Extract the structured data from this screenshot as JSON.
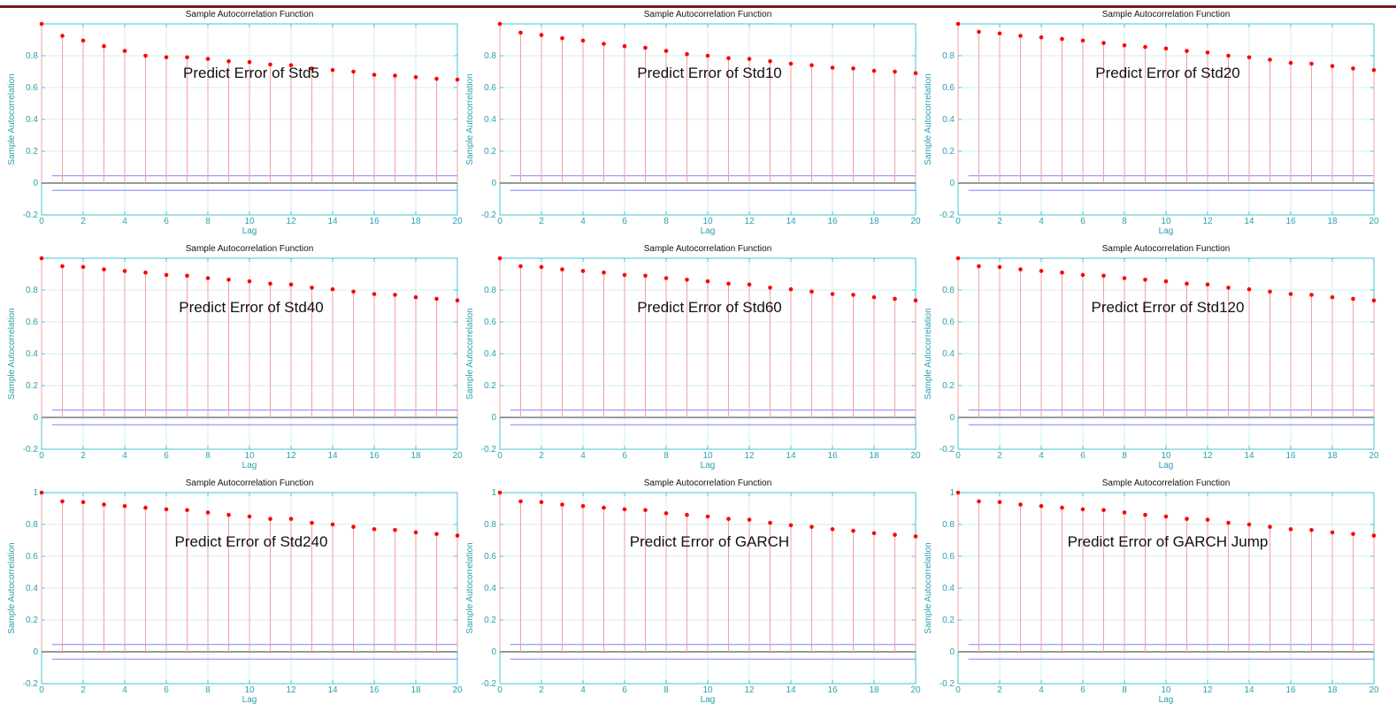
{
  "colors": {
    "axis": "#40c4cc",
    "grid": "#cfeff1",
    "stem": "#f2a0a0",
    "marker": "#ff0000",
    "bound": "#8080ff",
    "zero_line": "#333333",
    "tick_text": "#2aa0ad",
    "header_rule": "#7a1a1a"
  },
  "chart_data": [
    {
      "type": "scatter",
      "title": "Sample Autocorrelation Function",
      "xlabel": "Lag",
      "ylabel": "Sample Autocorrelation",
      "annotation": "Predict Error of Std5",
      "x": [
        0,
        1,
        2,
        3,
        4,
        5,
        6,
        7,
        8,
        9,
        10,
        11,
        12,
        13,
        14,
        15,
        16,
        17,
        18,
        19,
        20
      ],
      "values": [
        1.0,
        0.925,
        0.895,
        0.86,
        0.83,
        0.8,
        0.79,
        0.79,
        0.78,
        0.765,
        0.76,
        0.745,
        0.74,
        0.72,
        0.71,
        0.7,
        0.68,
        0.675,
        0.665,
        0.655,
        0.65
      ],
      "bounds": [
        0.046,
        -0.046
      ],
      "xlim": [
        0,
        20
      ],
      "ylim": [
        -0.2,
        1
      ],
      "x_ticks": [
        "0",
        "2",
        "4",
        "6",
        "8",
        "10",
        "12",
        "14",
        "16",
        "18",
        "20"
      ],
      "y_ticks": [
        "-0.2",
        "0",
        "0.2",
        "0.4",
        "0.6",
        "0.8"
      ],
      "grid": true
    },
    {
      "type": "scatter",
      "title": "Sample Autocorrelation Function",
      "xlabel": "Lag",
      "ylabel": "Sample Autocorrelation",
      "annotation": "Predict Error of Std10",
      "x": [
        0,
        1,
        2,
        3,
        4,
        5,
        6,
        7,
        8,
        9,
        10,
        11,
        12,
        13,
        14,
        15,
        16,
        17,
        18,
        19,
        20
      ],
      "values": [
        1.0,
        0.945,
        0.93,
        0.91,
        0.895,
        0.875,
        0.86,
        0.85,
        0.83,
        0.81,
        0.8,
        0.785,
        0.78,
        0.765,
        0.75,
        0.74,
        0.725,
        0.72,
        0.705,
        0.7,
        0.69
      ],
      "bounds": [
        0.046,
        -0.046
      ],
      "xlim": [
        0,
        20
      ],
      "ylim": [
        -0.2,
        1
      ],
      "x_ticks": [
        "0",
        "2",
        "4",
        "6",
        "8",
        "10",
        "12",
        "14",
        "16",
        "18",
        "20"
      ],
      "y_ticks": [
        "-0.2",
        "0",
        "0.2",
        "0.4",
        "0.6",
        "0.8"
      ],
      "grid": true
    },
    {
      "type": "scatter",
      "title": "Sample Autocorrelation Function",
      "xlabel": "Lag",
      "ylabel": "Sample Autocorrelation",
      "annotation": "Predict Error of Std20",
      "x": [
        0,
        1,
        2,
        3,
        4,
        5,
        6,
        7,
        8,
        9,
        10,
        11,
        12,
        13,
        14,
        15,
        16,
        17,
        18,
        19,
        20
      ],
      "values": [
        1.0,
        0.95,
        0.94,
        0.925,
        0.915,
        0.905,
        0.895,
        0.88,
        0.865,
        0.855,
        0.845,
        0.83,
        0.82,
        0.8,
        0.79,
        0.775,
        0.755,
        0.75,
        0.735,
        0.72,
        0.71
      ],
      "bounds": [
        0.046,
        -0.046
      ],
      "xlim": [
        0,
        20
      ],
      "ylim": [
        -0.2,
        1
      ],
      "x_ticks": [
        "0",
        "2",
        "4",
        "6",
        "8",
        "10",
        "12",
        "14",
        "16",
        "18",
        "20"
      ],
      "y_ticks": [
        "-0.2",
        "0",
        "0.2",
        "0.4",
        "0.6",
        "0.8"
      ],
      "grid": true
    },
    {
      "type": "scatter",
      "title": "Sample Autocorrelation Function",
      "xlabel": "Lag",
      "ylabel": "Sample Autocorrelation",
      "annotation": "Predict Error of Std40",
      "x": [
        0,
        1,
        2,
        3,
        4,
        5,
        6,
        7,
        8,
        9,
        10,
        11,
        12,
        13,
        14,
        15,
        16,
        17,
        18,
        19,
        20
      ],
      "values": [
        1.0,
        0.95,
        0.945,
        0.93,
        0.92,
        0.91,
        0.895,
        0.89,
        0.875,
        0.865,
        0.855,
        0.84,
        0.835,
        0.815,
        0.805,
        0.79,
        0.775,
        0.77,
        0.755,
        0.745,
        0.735
      ],
      "bounds": [
        0.046,
        -0.046
      ],
      "xlim": [
        0,
        20
      ],
      "ylim": [
        -0.2,
        1
      ],
      "x_ticks": [
        "0",
        "2",
        "4",
        "6",
        "8",
        "10",
        "12",
        "14",
        "16",
        "18",
        "20"
      ],
      "y_ticks": [
        "-0.2",
        "0",
        "0.2",
        "0.4",
        "0.6",
        "0.8"
      ],
      "grid": true
    },
    {
      "type": "scatter",
      "title": "Sample Autocorrelation Function",
      "xlabel": "Lag",
      "ylabel": "Sample Autocorrelation",
      "annotation": "Predict Error of Std60",
      "x": [
        0,
        1,
        2,
        3,
        4,
        5,
        6,
        7,
        8,
        9,
        10,
        11,
        12,
        13,
        14,
        15,
        16,
        17,
        18,
        19,
        20
      ],
      "values": [
        1.0,
        0.95,
        0.945,
        0.93,
        0.92,
        0.91,
        0.895,
        0.89,
        0.875,
        0.865,
        0.855,
        0.84,
        0.835,
        0.815,
        0.805,
        0.79,
        0.775,
        0.77,
        0.755,
        0.745,
        0.735
      ],
      "bounds": [
        0.046,
        -0.046
      ],
      "xlim": [
        0,
        20
      ],
      "ylim": [
        -0.2,
        1
      ],
      "x_ticks": [
        "0",
        "2",
        "4",
        "6",
        "8",
        "10",
        "12",
        "14",
        "16",
        "18",
        "20"
      ],
      "y_ticks": [
        "-0.2",
        "0",
        "0.2",
        "0.4",
        "0.6",
        "0.8"
      ],
      "grid": true
    },
    {
      "type": "scatter",
      "title": "Sample Autocorrelation Function",
      "xlabel": "Lag",
      "ylabel": "Sample Autocorrelation",
      "annotation": "Predict Error of Std120",
      "x": [
        0,
        1,
        2,
        3,
        4,
        5,
        6,
        7,
        8,
        9,
        10,
        11,
        12,
        13,
        14,
        15,
        16,
        17,
        18,
        19,
        20
      ],
      "values": [
        1.0,
        0.95,
        0.945,
        0.93,
        0.92,
        0.91,
        0.895,
        0.89,
        0.875,
        0.865,
        0.855,
        0.84,
        0.835,
        0.815,
        0.805,
        0.79,
        0.775,
        0.77,
        0.755,
        0.745,
        0.735
      ],
      "bounds": [
        0.046,
        -0.046
      ],
      "xlim": [
        0,
        20
      ],
      "ylim": [
        -0.2,
        1
      ],
      "x_ticks": [
        "0",
        "2",
        "4",
        "6",
        "8",
        "10",
        "12",
        "14",
        "16",
        "18",
        "20"
      ],
      "y_ticks": [
        "-0.2",
        "0",
        "0.2",
        "0.4",
        "0.6",
        "0.8"
      ],
      "grid": true
    },
    {
      "type": "scatter",
      "title": "Sample Autocorrelation Function",
      "xlabel": "Lag",
      "ylabel": "Sample Autocorrelation",
      "annotation": "Predict Error of Std240",
      "x": [
        0,
        1,
        2,
        3,
        4,
        5,
        6,
        7,
        8,
        9,
        10,
        11,
        12,
        13,
        14,
        15,
        16,
        17,
        18,
        19,
        20
      ],
      "values": [
        1.0,
        0.945,
        0.94,
        0.925,
        0.915,
        0.905,
        0.895,
        0.89,
        0.875,
        0.86,
        0.85,
        0.835,
        0.835,
        0.81,
        0.8,
        0.785,
        0.77,
        0.765,
        0.75,
        0.74,
        0.73
      ],
      "bounds": [
        0.046,
        -0.046
      ],
      "xlim": [
        0,
        20
      ],
      "ylim": [
        -0.2,
        1
      ],
      "x_ticks": [
        "0",
        "2",
        "4",
        "6",
        "8",
        "10",
        "12",
        "14",
        "16",
        "18",
        "20"
      ],
      "y_ticks": [
        "-0.2",
        "0",
        "0.2",
        "0.4",
        "0.6",
        "0.8",
        "1"
      ],
      "grid": true
    },
    {
      "type": "scatter",
      "title": "Sample Autocorrelation Function",
      "xlabel": "Lag",
      "ylabel": "Sample Autocorrelation",
      "annotation": "Predict Error of GARCH",
      "x": [
        0,
        1,
        2,
        3,
        4,
        5,
        6,
        7,
        8,
        9,
        10,
        11,
        12,
        13,
        14,
        15,
        16,
        17,
        18,
        19,
        20
      ],
      "values": [
        1.0,
        0.945,
        0.94,
        0.925,
        0.915,
        0.905,
        0.895,
        0.89,
        0.87,
        0.86,
        0.85,
        0.835,
        0.83,
        0.81,
        0.795,
        0.785,
        0.77,
        0.76,
        0.745,
        0.735,
        0.725
      ],
      "bounds": [
        0.046,
        -0.046
      ],
      "xlim": [
        0,
        20
      ],
      "ylim": [
        -0.2,
        1
      ],
      "x_ticks": [
        "0",
        "2",
        "4",
        "6",
        "8",
        "10",
        "12",
        "14",
        "16",
        "18",
        "20"
      ],
      "y_ticks": [
        "-0.2",
        "0",
        "0.2",
        "0.4",
        "0.6",
        "0.8",
        "1"
      ],
      "grid": true
    },
    {
      "type": "scatter",
      "title": "Sample Autocorrelation Function",
      "xlabel": "Lag",
      "ylabel": "Sample Autocorrelation",
      "annotation": "Predict Error of GARCH Jump",
      "x": [
        0,
        1,
        2,
        3,
        4,
        5,
        6,
        7,
        8,
        9,
        10,
        11,
        12,
        13,
        14,
        15,
        16,
        17,
        18,
        19,
        20
      ],
      "values": [
        1.0,
        0.945,
        0.94,
        0.925,
        0.915,
        0.905,
        0.895,
        0.89,
        0.875,
        0.86,
        0.85,
        0.835,
        0.83,
        0.81,
        0.8,
        0.785,
        0.77,
        0.765,
        0.75,
        0.74,
        0.73
      ],
      "bounds": [
        0.046,
        -0.046
      ],
      "xlim": [
        0,
        20
      ],
      "ylim": [
        -0.2,
        1
      ],
      "x_ticks": [
        "0",
        "2",
        "4",
        "6",
        "8",
        "10",
        "12",
        "14",
        "16",
        "18",
        "20"
      ],
      "y_ticks": [
        "-0.2",
        "0",
        "0.2",
        "0.4",
        "0.6",
        "0.8",
        "1"
      ],
      "grid": true
    }
  ]
}
